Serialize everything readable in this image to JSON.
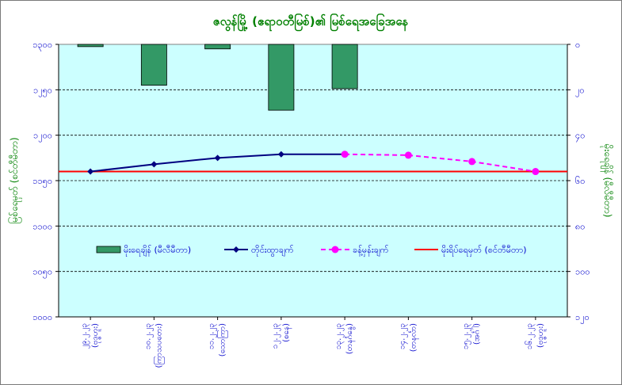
{
  "chart_data": {
    "type": "bar+line",
    "title": "ဇလွန်မြို့ (ဧရာဝတီမြစ်)၏ မြစ်ရေအခြေအနေ",
    "ylabel_left": "မြစ်ရေမှတ် (စင်တီမီတာ)",
    "ylabel_right": "မိုးရေချိန် (မီလီမီတာ)",
    "categories": [
      "၂၉.၂.၂၃\n(ဗုဒ္ဓဟူး)",
      "၁၀.၂.၂၃\n(ကြာသပတေး)",
      "၁၁.၂.၂၃\n(သောကြာ)",
      "၁၂.၂.၂၃\n(စနေ)",
      "၁၃.၂.၂၃\n(တနင်္ဂနွေ)",
      "၁၄.၂.၂၃\n(တနင်္လာ)",
      "၁၅.၂.၂၃\n(အင်္ဂါ)",
      "၁၆.၂.၂၃\n(ဗုဒ္ဓဟူး)"
    ],
    "left_axis": {
      "ylim": [
        1000,
        1300
      ],
      "ticks": [
        "၁၀၀၀",
        "၁၀၅၀",
        "၁၁၀၀",
        "၁၁၅၀",
        "၁၂၀၀",
        "၁၂၅၀",
        "၁၃၀၀"
      ],
      "tick_values": [
        1000,
        1050,
        1100,
        1150,
        1200,
        1250,
        1300
      ]
    },
    "right_axis": {
      "ylim": [
        120,
        0
      ],
      "inverted": true,
      "ticks": [
        "၀",
        "၂၀",
        "၄၀",
        "၆၀",
        "၈၀",
        "၁၀၀",
        "၁၂၀"
      ],
      "tick_values": [
        0,
        20,
        40,
        60,
        80,
        100,
        120
      ]
    },
    "series": [
      {
        "name": "မိုးရေချိန် (မီလီမီတာ)",
        "kind": "bar",
        "axis": "right",
        "color": "#339966",
        "values": [
          1,
          18,
          2,
          29,
          19.5,
          null,
          null,
          null
        ]
      },
      {
        "name": "တိုင်းထွာချက်",
        "kind": "line",
        "axis": "left",
        "color": "#000080",
        "marker": "diamond",
        "values": [
          1160,
          1168,
          1175,
          1179,
          1179,
          null,
          null,
          null
        ]
      },
      {
        "name": "ခန့်မှန်းချက်",
        "kind": "dashed-line",
        "axis": "left",
        "color": "#ff00ff",
        "marker": "circle",
        "values": [
          null,
          null,
          null,
          null,
          1179,
          1178,
          1171,
          1160
        ]
      },
      {
        "name": "မိုးရိပ်ရေမှတ် (စင်တီမီတာ)",
        "kind": "hline",
        "axis": "left",
        "color": "#ff0000",
        "value": 1160
      }
    ],
    "grid": true,
    "legend_position": "lower-center",
    "plot_background": "#ccffff"
  }
}
